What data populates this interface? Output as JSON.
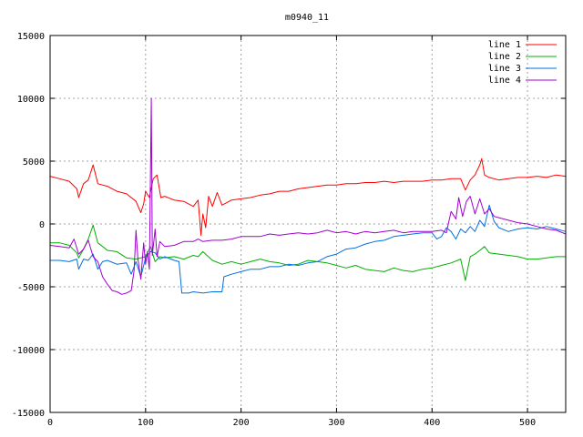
{
  "chart_data": {
    "type": "line",
    "title": "m0940_11",
    "xlabel": "",
    "ylabel": "",
    "xlim": [
      0,
      540
    ],
    "ylim": [
      -15000,
      15000
    ],
    "xticks": [
      0,
      100,
      200,
      300,
      400,
      500
    ],
    "yticks": [
      -15000,
      -10000,
      -5000,
      0,
      5000,
      10000,
      15000
    ],
    "grid": true,
    "legend_position": "top-right",
    "series": [
      {
        "name": "line 1",
        "color": "#ff0000",
        "points": [
          [
            0,
            3800
          ],
          [
            10,
            3600
          ],
          [
            20,
            3400
          ],
          [
            28,
            2800
          ],
          [
            30,
            2100
          ],
          [
            35,
            3200
          ],
          [
            40,
            3500
          ],
          [
            45,
            4700
          ],
          [
            50,
            3200
          ],
          [
            60,
            3000
          ],
          [
            70,
            2600
          ],
          [
            80,
            2400
          ],
          [
            90,
            1800
          ],
          [
            95,
            900
          ],
          [
            98,
            1600
          ],
          [
            100,
            2600
          ],
          [
            104,
            2100
          ],
          [
            108,
            3600
          ],
          [
            112,
            3900
          ],
          [
            116,
            2100
          ],
          [
            120,
            2200
          ],
          [
            130,
            1900
          ],
          [
            140,
            1800
          ],
          [
            150,
            1400
          ],
          [
            155,
            1900
          ],
          [
            158,
            -900
          ],
          [
            160,
            800
          ],
          [
            163,
            -300
          ],
          [
            166,
            2200
          ],
          [
            170,
            1400
          ],
          [
            175,
            2500
          ],
          [
            180,
            1500
          ],
          [
            190,
            1900
          ],
          [
            200,
            2000
          ],
          [
            210,
            2100
          ],
          [
            220,
            2300
          ],
          [
            230,
            2400
          ],
          [
            240,
            2600
          ],
          [
            250,
            2600
          ],
          [
            260,
            2800
          ],
          [
            270,
            2900
          ],
          [
            280,
            3000
          ],
          [
            290,
            3100
          ],
          [
            300,
            3100
          ],
          [
            310,
            3200
          ],
          [
            320,
            3200
          ],
          [
            330,
            3300
          ],
          [
            340,
            3300
          ],
          [
            350,
            3400
          ],
          [
            360,
            3300
          ],
          [
            370,
            3400
          ],
          [
            380,
            3400
          ],
          [
            390,
            3400
          ],
          [
            400,
            3500
          ],
          [
            410,
            3500
          ],
          [
            420,
            3600
          ],
          [
            430,
            3600
          ],
          [
            435,
            2700
          ],
          [
            440,
            3500
          ],
          [
            445,
            3900
          ],
          [
            450,
            4700
          ],
          [
            452,
            5200
          ],
          [
            455,
            3900
          ],
          [
            460,
            3700
          ],
          [
            470,
            3500
          ],
          [
            480,
            3600
          ],
          [
            490,
            3700
          ],
          [
            500,
            3700
          ],
          [
            510,
            3800
          ],
          [
            520,
            3700
          ],
          [
            530,
            3900
          ],
          [
            540,
            3800
          ]
        ]
      },
      {
        "name": "line 2",
        "color": "#00b000",
        "points": [
          [
            0,
            -1500
          ],
          [
            10,
            -1500
          ],
          [
            20,
            -1700
          ],
          [
            28,
            -2300
          ],
          [
            30,
            -2700
          ],
          [
            35,
            -2000
          ],
          [
            40,
            -1200
          ],
          [
            45,
            -100
          ],
          [
            50,
            -1500
          ],
          [
            60,
            -2100
          ],
          [
            70,
            -2200
          ],
          [
            80,
            -2700
          ],
          [
            90,
            -2800
          ],
          [
            100,
            -2600
          ],
          [
            105,
            -1800
          ],
          [
            110,
            -3000
          ],
          [
            115,
            -2600
          ],
          [
            120,
            -2700
          ],
          [
            130,
            -2600
          ],
          [
            140,
            -2800
          ],
          [
            150,
            -2500
          ],
          [
            155,
            -2600
          ],
          [
            160,
            -2200
          ],
          [
            170,
            -2900
          ],
          [
            180,
            -3200
          ],
          [
            190,
            -3000
          ],
          [
            200,
            -3200
          ],
          [
            210,
            -3000
          ],
          [
            220,
            -2800
          ],
          [
            230,
            -3000
          ],
          [
            240,
            -3100
          ],
          [
            250,
            -3300
          ],
          [
            260,
            -3200
          ],
          [
            270,
            -2900
          ],
          [
            280,
            -3000
          ],
          [
            290,
            -3100
          ],
          [
            300,
            -3300
          ],
          [
            310,
            -3500
          ],
          [
            320,
            -3300
          ],
          [
            330,
            -3600
          ],
          [
            340,
            -3700
          ],
          [
            350,
            -3800
          ],
          [
            360,
            -3500
          ],
          [
            370,
            -3700
          ],
          [
            380,
            -3800
          ],
          [
            390,
            -3600
          ],
          [
            400,
            -3500
          ],
          [
            410,
            -3300
          ],
          [
            420,
            -3100
          ],
          [
            430,
            -2800
          ],
          [
            435,
            -4500
          ],
          [
            440,
            -2600
          ],
          [
            445,
            -2400
          ],
          [
            450,
            -2100
          ],
          [
            455,
            -1800
          ],
          [
            460,
            -2300
          ],
          [
            470,
            -2400
          ],
          [
            480,
            -2500
          ],
          [
            490,
            -2600
          ],
          [
            500,
            -2800
          ],
          [
            510,
            -2800
          ],
          [
            520,
            -2700
          ],
          [
            530,
            -2600
          ],
          [
            540,
            -2600
          ]
        ]
      },
      {
        "name": "line 3",
        "color": "#0070e0",
        "points": [
          [
            0,
            -2900
          ],
          [
            10,
            -2900
          ],
          [
            20,
            -3000
          ],
          [
            28,
            -2800
          ],
          [
            30,
            -3600
          ],
          [
            35,
            -2800
          ],
          [
            40,
            -2900
          ],
          [
            45,
            -2400
          ],
          [
            50,
            -3600
          ],
          [
            55,
            -3000
          ],
          [
            60,
            -2900
          ],
          [
            70,
            -3200
          ],
          [
            80,
            -3100
          ],
          [
            85,
            -4000
          ],
          [
            90,
            -3000
          ],
          [
            95,
            -4200
          ],
          [
            100,
            -2700
          ],
          [
            105,
            -2200
          ],
          [
            110,
            -2300
          ],
          [
            115,
            -2800
          ],
          [
            120,
            -2600
          ],
          [
            130,
            -2900
          ],
          [
            135,
            -3000
          ],
          [
            138,
            -5500
          ],
          [
            145,
            -5500
          ],
          [
            150,
            -5400
          ],
          [
            160,
            -5500
          ],
          [
            170,
            -5400
          ],
          [
            180,
            -5400
          ],
          [
            182,
            -4200
          ],
          [
            190,
            -4000
          ],
          [
            200,
            -3800
          ],
          [
            210,
            -3600
          ],
          [
            220,
            -3600
          ],
          [
            230,
            -3400
          ],
          [
            240,
            -3400
          ],
          [
            250,
            -3200
          ],
          [
            260,
            -3300
          ],
          [
            270,
            -3100
          ],
          [
            280,
            -3000
          ],
          [
            290,
            -2600
          ],
          [
            300,
            -2400
          ],
          [
            310,
            -2000
          ],
          [
            320,
            -1900
          ],
          [
            330,
            -1600
          ],
          [
            340,
            -1400
          ],
          [
            350,
            -1300
          ],
          [
            360,
            -1000
          ],
          [
            370,
            -900
          ],
          [
            380,
            -800
          ],
          [
            390,
            -700
          ],
          [
            400,
            -700
          ],
          [
            405,
            -1200
          ],
          [
            410,
            -1000
          ],
          [
            415,
            -300
          ],
          [
            420,
            -600
          ],
          [
            425,
            -1200
          ],
          [
            430,
            -400
          ],
          [
            435,
            -700
          ],
          [
            440,
            -200
          ],
          [
            445,
            -600
          ],
          [
            450,
            300
          ],
          [
            455,
            -200
          ],
          [
            460,
            1500
          ],
          [
            465,
            200
          ],
          [
            470,
            -300
          ],
          [
            480,
            -600
          ],
          [
            490,
            -400
          ],
          [
            500,
            -300
          ],
          [
            510,
            -400
          ],
          [
            520,
            -200
          ],
          [
            530,
            -400
          ],
          [
            540,
            -600
          ]
        ]
      },
      {
        "name": "line 4",
        "color": "#a000d0",
        "points": [
          [
            0,
            -1700
          ],
          [
            10,
            -1800
          ],
          [
            20,
            -1900
          ],
          [
            25,
            -1200
          ],
          [
            30,
            -2400
          ],
          [
            35,
            -2000
          ],
          [
            40,
            -1300
          ],
          [
            45,
            -2600
          ],
          [
            50,
            -3000
          ],
          [
            55,
            -4200
          ],
          [
            60,
            -4800
          ],
          [
            65,
            -5300
          ],
          [
            70,
            -5400
          ],
          [
            75,
            -5600
          ],
          [
            80,
            -5500
          ],
          [
            85,
            -5300
          ],
          [
            88,
            -3700
          ],
          [
            90,
            -500
          ],
          [
            92,
            -2800
          ],
          [
            95,
            -4400
          ],
          [
            98,
            -1500
          ],
          [
            100,
            -3200
          ],
          [
            102,
            -2200
          ],
          [
            104,
            -3600
          ],
          [
            106,
            10000
          ],
          [
            107,
            -2500
          ],
          [
            110,
            -400
          ],
          [
            112,
            -2600
          ],
          [
            115,
            -1400
          ],
          [
            120,
            -1800
          ],
          [
            130,
            -1700
          ],
          [
            140,
            -1400
          ],
          [
            150,
            -1400
          ],
          [
            155,
            -1200
          ],
          [
            160,
            -1400
          ],
          [
            170,
            -1300
          ],
          [
            180,
            -1300
          ],
          [
            190,
            -1200
          ],
          [
            200,
            -1000
          ],
          [
            210,
            -1000
          ],
          [
            220,
            -1000
          ],
          [
            230,
            -800
          ],
          [
            240,
            -900
          ],
          [
            250,
            -800
          ],
          [
            260,
            -700
          ],
          [
            270,
            -800
          ],
          [
            280,
            -700
          ],
          [
            290,
            -500
          ],
          [
            300,
            -700
          ],
          [
            310,
            -600
          ],
          [
            320,
            -800
          ],
          [
            330,
            -600
          ],
          [
            340,
            -700
          ],
          [
            350,
            -600
          ],
          [
            360,
            -500
          ],
          [
            370,
            -700
          ],
          [
            380,
            -600
          ],
          [
            390,
            -600
          ],
          [
            400,
            -600
          ],
          [
            410,
            -500
          ],
          [
            415,
            -700
          ],
          [
            420,
            1000
          ],
          [
            425,
            400
          ],
          [
            428,
            2100
          ],
          [
            432,
            600
          ],
          [
            436,
            1800
          ],
          [
            440,
            2200
          ],
          [
            445,
            800
          ],
          [
            450,
            2000
          ],
          [
            455,
            800
          ],
          [
            460,
            1200
          ],
          [
            465,
            600
          ],
          [
            470,
            500
          ],
          [
            480,
            300
          ],
          [
            490,
            100
          ],
          [
            500,
            0
          ],
          [
            510,
            -200
          ],
          [
            520,
            -400
          ],
          [
            530,
            -500
          ],
          [
            540,
            -800
          ]
        ]
      }
    ]
  }
}
